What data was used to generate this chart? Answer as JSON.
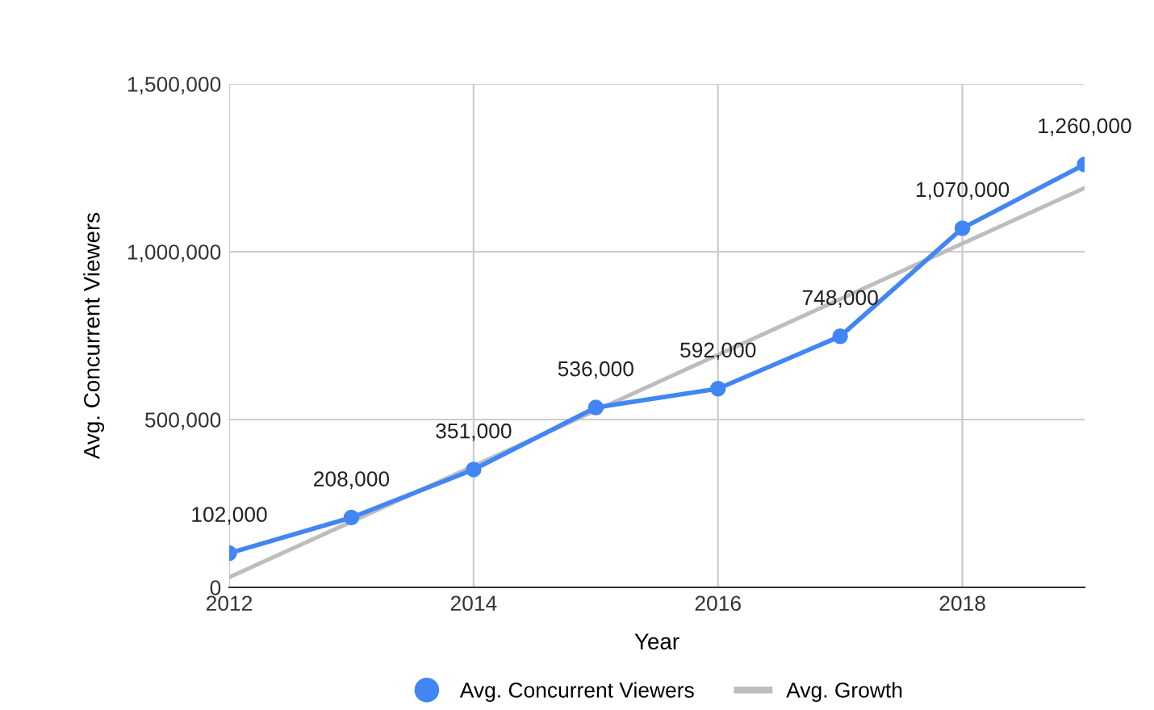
{
  "chart_data": {
    "type": "line",
    "xlabel": "Year",
    "ylabel": "Avg. Concurrent Viewers",
    "x": [
      2012,
      2013,
      2014,
      2015,
      2016,
      2017,
      2018,
      2019
    ],
    "series": [
      {
        "name": "Avg. Concurrent Viewers",
        "color": "#4285f4",
        "values": [
          102000,
          208000,
          351000,
          536000,
          592000,
          748000,
          1070000,
          1260000
        ],
        "marker": "circle",
        "value_labels": [
          "102,000",
          "208,000",
          "351,000",
          "536,000",
          "592,000",
          "748,000",
          "1,070,000",
          "1,260,000"
        ]
      },
      {
        "name": "Avg. Growth",
        "color": "#bdbdbd",
        "type": "line",
        "x": [
          2012,
          2019
        ],
        "values": [
          30000,
          1190000
        ],
        "marker": "none"
      }
    ],
    "xlim": [
      2012,
      2019
    ],
    "xticks": [
      2012,
      2014,
      2016,
      2018
    ],
    "ylim": [
      0,
      1500000
    ],
    "yticks": [
      {
        "value": 0,
        "label": "0"
      },
      {
        "value": 500000,
        "label": "500,000"
      },
      {
        "value": 1000000,
        "label": "1,000,000"
      },
      {
        "value": 1500000,
        "label": "1,500,000"
      }
    ],
    "grid": true,
    "legend": "bottom",
    "line_style": "solid"
  }
}
